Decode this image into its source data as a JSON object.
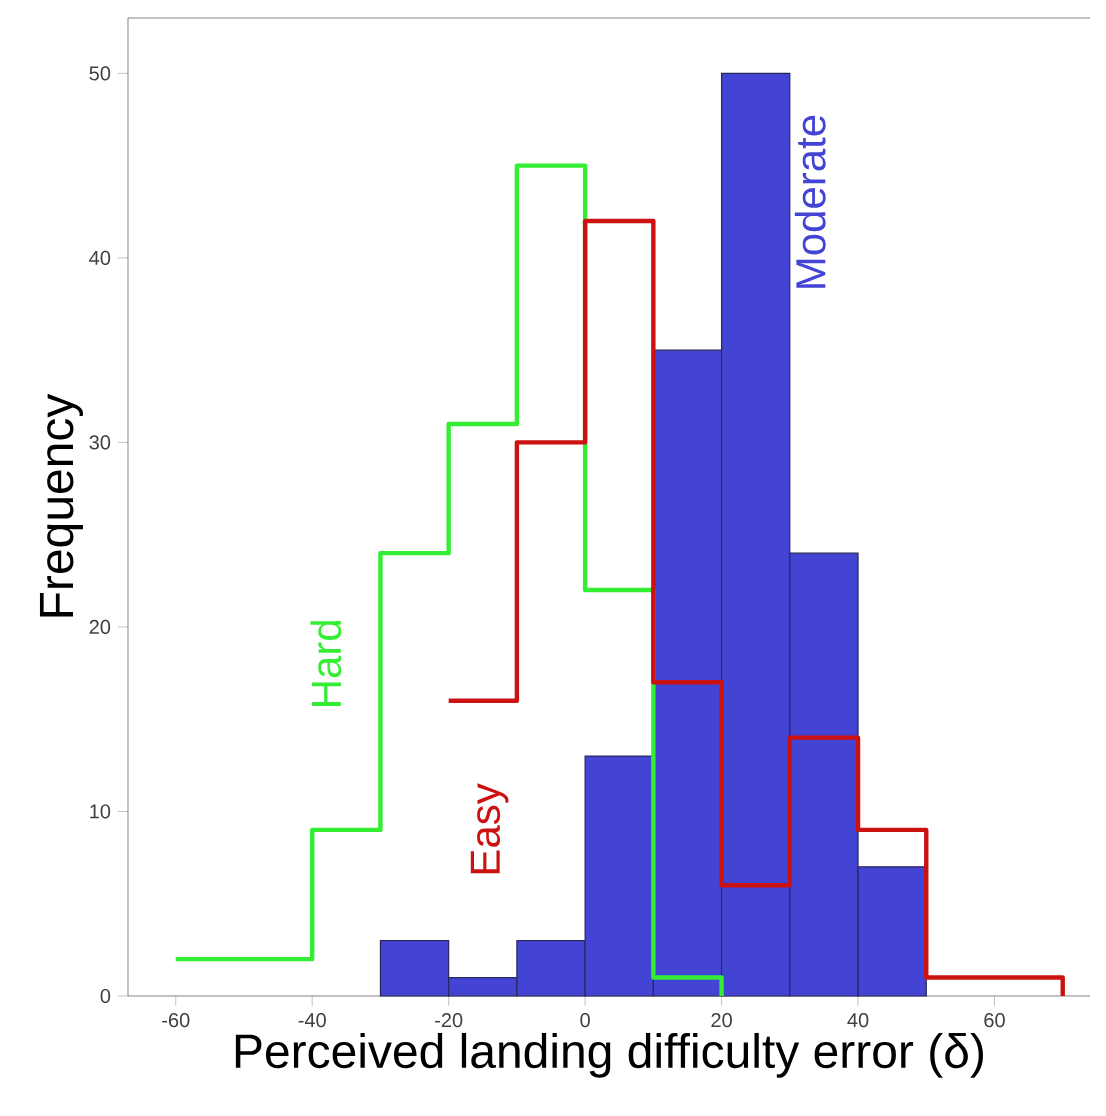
{
  "chart_data": {
    "type": "histogram",
    "xlabel": "Perceived landing difficulty error (δ)",
    "ylabel": "Frequency",
    "bins": [
      -30,
      -20,
      -10,
      0,
      10,
      20,
      30,
      40,
      50
    ],
    "series": [
      {
        "name": "Moderate",
        "color": "#4444d4",
        "values": [
          3,
          1,
          3,
          13,
          35,
          50,
          24,
          7
        ]
      },
      {
        "name": "Hard",
        "type": "step",
        "color": "#33ee33",
        "x": [
          -60,
          -50,
          -40,
          -30,
          -20,
          -10,
          0,
          10,
          20
        ],
        "values": [
          2,
          2,
          9,
          24,
          31,
          45,
          22,
          1,
          0
        ]
      },
      {
        "name": "Easy",
        "type": "step",
        "color": "#cc1111",
        "x": [
          -20,
          -10,
          0,
          10,
          20,
          30,
          40,
          50,
          60,
          70
        ],
        "values": [
          16,
          30,
          42,
          17,
          6,
          14,
          9,
          1,
          1,
          0
        ]
      }
    ],
    "xlim": [
      -67,
      74
    ],
    "ylim": [
      0,
      53
    ],
    "xticks": [
      -60,
      -40,
      -20,
      0,
      20,
      40,
      60
    ],
    "yticks": [
      0,
      10,
      20,
      30,
      40,
      50
    ]
  }
}
